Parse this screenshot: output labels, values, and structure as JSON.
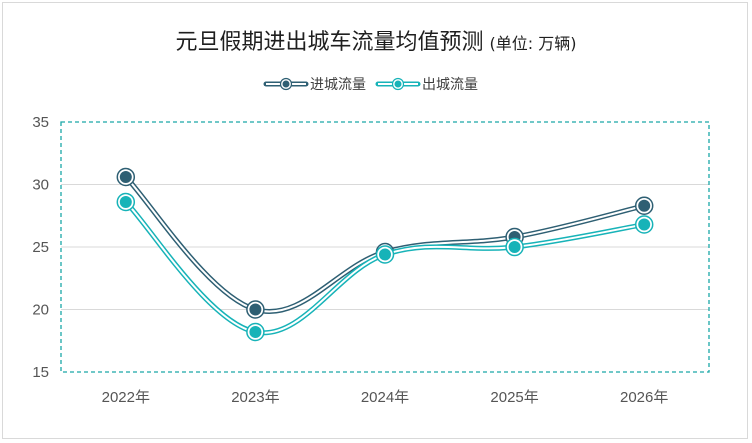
{
  "chart_data": {
    "type": "line",
    "title": "元旦假期进出城车流量均值预测",
    "unit": "(单位: 万辆)",
    "categories": [
      "2022年",
      "2023年",
      "2024年",
      "2025年",
      "2026年"
    ],
    "series": [
      {
        "name": "进城流量",
        "values": [
          30.6,
          20.0,
          24.6,
          25.8,
          28.3
        ],
        "color": "#2e5f73"
      },
      {
        "name": "出城流量",
        "values": [
          28.6,
          18.2,
          24.4,
          25.0,
          26.8
        ],
        "color": "#17b3b8"
      }
    ],
    "ylim": [
      15,
      35
    ],
    "yticks": [
      15,
      20,
      25,
      30,
      35
    ],
    "grid": true,
    "smooth": true,
    "legend_position": "top-center",
    "xlabel": "",
    "ylabel": ""
  }
}
